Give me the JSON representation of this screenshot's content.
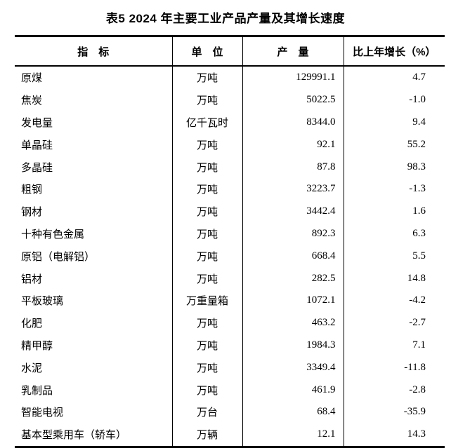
{
  "page": {
    "background_color": "#ffffff",
    "text_color": "#000000",
    "border_color": "#000000"
  },
  "title": "表5 2024 年主要工业产品产量及其增长速度",
  "table": {
    "headers": {
      "indicator": "指　标",
      "unit": "单　位",
      "output": "产　量",
      "growth": "比上年增长（%）"
    },
    "rows": [
      {
        "indicator": "原煤",
        "unit": "万吨",
        "output": "129991.1",
        "growth": "4.7"
      },
      {
        "indicator": "焦炭",
        "unit": "万吨",
        "output": "5022.5",
        "growth": "-1.0"
      },
      {
        "indicator": "发电量",
        "unit": "亿千瓦时",
        "output": "8344.0",
        "growth": "9.4"
      },
      {
        "indicator": "单晶硅",
        "unit": "万吨",
        "output": "92.1",
        "growth": "55.2"
      },
      {
        "indicator": "多晶硅",
        "unit": "万吨",
        "output": "87.8",
        "growth": "98.3"
      },
      {
        "indicator": "粗钢",
        "unit": "万吨",
        "output": "3223.7",
        "growth": "-1.3"
      },
      {
        "indicator": "钢材",
        "unit": "万吨",
        "output": "3442.4",
        "growth": "1.6"
      },
      {
        "indicator": "十种有色金属",
        "unit": "万吨",
        "output": "892.3",
        "growth": "6.3"
      },
      {
        "indicator": "原铝（电解铝）",
        "unit": "万吨",
        "output": "668.4",
        "growth": "5.5"
      },
      {
        "indicator": "铝材",
        "unit": "万吨",
        "output": "282.5",
        "growth": "14.8"
      },
      {
        "indicator": "平板玻璃",
        "unit": "万重量箱",
        "output": "1072.1",
        "growth": "-4.2"
      },
      {
        "indicator": "化肥",
        "unit": "万吨",
        "output": "463.2",
        "growth": "-2.7"
      },
      {
        "indicator": "精甲醇",
        "unit": "万吨",
        "output": "1984.3",
        "growth": "7.1"
      },
      {
        "indicator": "水泥",
        "unit": "万吨",
        "output": "3349.4",
        "growth": "-11.8"
      },
      {
        "indicator": "乳制品",
        "unit": "万吨",
        "output": "461.9",
        "growth": "-2.8"
      },
      {
        "indicator": "智能电视",
        "unit": "万台",
        "output": "68.4",
        "growth": "-35.9"
      },
      {
        "indicator": "基本型乘用车（轿车）",
        "unit": "万辆",
        "output": "12.1",
        "growth": "14.3"
      }
    ]
  }
}
